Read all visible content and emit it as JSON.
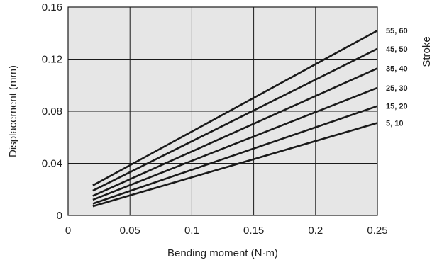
{
  "chart_data": {
    "type": "line",
    "title": "",
    "xlabel": "Bending moment (N·m)",
    "ylabel": "Displacement (mm)",
    "legend_title": "Stroke",
    "legend_placement": "right",
    "grid": true,
    "xlim": [
      0,
      0.25
    ],
    "ylim": [
      0,
      0.16
    ],
    "xticks": [
      "0",
      "0.05",
      "0.1",
      "0.15",
      "0.2",
      "0.25"
    ],
    "yticks": [
      "0",
      "0.04",
      "0.08",
      "0.12",
      "0.16"
    ],
    "colors": {
      "plot_background": "#e6e6e6",
      "grid": "#1a1a1a",
      "line": "#1a1a1a"
    },
    "series": [
      {
        "name": "5, 10",
        "x": [
          0.02,
          0.25
        ],
        "y": [
          0.007,
          0.071
        ]
      },
      {
        "name": "15, 20",
        "x": [
          0.02,
          0.25
        ],
        "y": [
          0.009,
          0.084
        ]
      },
      {
        "name": "25, 30",
        "x": [
          0.02,
          0.25
        ],
        "y": [
          0.012,
          0.098
        ]
      },
      {
        "name": "35, 40",
        "x": [
          0.02,
          0.25
        ],
        "y": [
          0.015,
          0.113
        ]
      },
      {
        "name": "45, 50",
        "x": [
          0.02,
          0.25
        ],
        "y": [
          0.019,
          0.128
        ]
      },
      {
        "name": "55, 60",
        "x": [
          0.02,
          0.25
        ],
        "y": [
          0.023,
          0.142
        ]
      }
    ]
  }
}
